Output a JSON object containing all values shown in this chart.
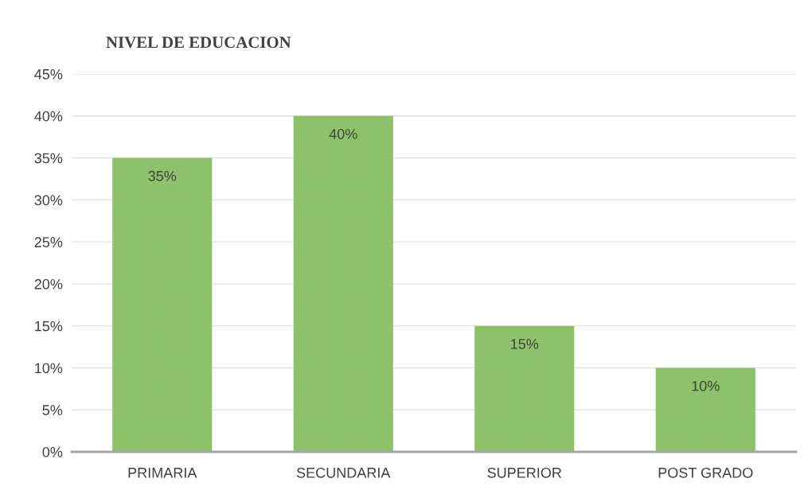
{
  "chart_data": {
    "type": "bar",
    "title": "NIVEL DE EDUCACION",
    "categories": [
      "PRIMARIA",
      "SECUNDARIA",
      "SUPERIOR",
      "POST GRADO"
    ],
    "values": [
      35,
      40,
      15,
      10
    ],
    "color": "#8dc26a",
    "value_labels": [
      "35%",
      "40%",
      "15%",
      "10%"
    ],
    "ylim": [
      0,
      45
    ],
    "yticks": [
      {
        "value": 0,
        "label": "0%"
      },
      {
        "value": 5,
        "label": "5%"
      },
      {
        "value": 10,
        "label": "10%"
      },
      {
        "value": 15,
        "label": "15%"
      },
      {
        "value": 20,
        "label": "20%"
      },
      {
        "value": 25,
        "label": "25%"
      },
      {
        "value": 30,
        "label": "30%"
      },
      {
        "value": 35,
        "label": "35%"
      },
      {
        "value": 40,
        "label": "40%"
      },
      {
        "value": 45,
        "label": "45%"
      }
    ],
    "grid": "y"
  }
}
